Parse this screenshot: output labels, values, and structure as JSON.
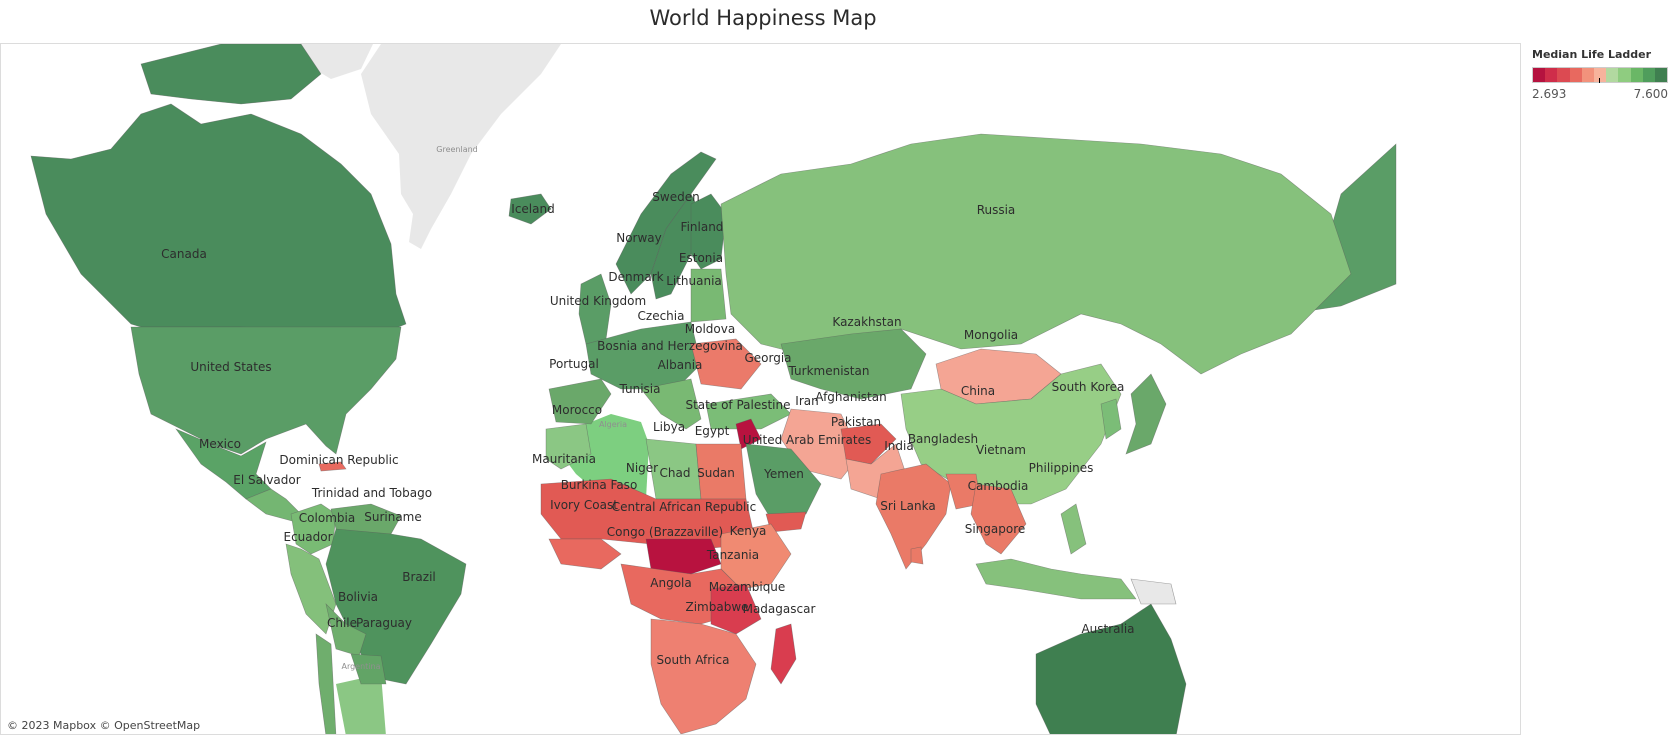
{
  "title": "World Happiness Map",
  "attribution": "© 2023 Mapbox © OpenStreetMap",
  "legend": {
    "title": "Median Life Ladder",
    "min_label": "2.693",
    "max_label": "7.600",
    "colors": [
      "#b5123f",
      "#cf2d4a",
      "#dc4a52",
      "#e8695f",
      "#f2927c",
      "#f7b39c",
      "#b2d9a0",
      "#8fcc80",
      "#6ab766",
      "#4f9d5c",
      "#3f7f50"
    ]
  },
  "basemap_labels": {
    "greenland": "Greenland",
    "algeria": "Algeria",
    "argentina": "Argentina"
  },
  "country_labels": [
    {
      "name": "Canada"
    },
    {
      "name": "United States"
    },
    {
      "name": "Mexico"
    },
    {
      "name": "Dominican Republic"
    },
    {
      "name": "El Salvador"
    },
    {
      "name": "Trinidad and Tobago"
    },
    {
      "name": "Colombia"
    },
    {
      "name": "Suriname"
    },
    {
      "name": "Ecuador"
    },
    {
      "name": "Brazil"
    },
    {
      "name": "Bolivia"
    },
    {
      "name": "Chile"
    },
    {
      "name": "Paraguay"
    },
    {
      "name": "Iceland"
    },
    {
      "name": "Sweden"
    },
    {
      "name": "Norway"
    },
    {
      "name": "Finland"
    },
    {
      "name": "Estonia"
    },
    {
      "name": "Denmark"
    },
    {
      "name": "Lithuania"
    },
    {
      "name": "United Kingdom"
    },
    {
      "name": "Czechia"
    },
    {
      "name": "Moldova"
    },
    {
      "name": "Bosnia and Herzegovina"
    },
    {
      "name": "Portugal"
    },
    {
      "name": "Albania"
    },
    {
      "name": "Georgia"
    },
    {
      "name": "Tunisia"
    },
    {
      "name": "Morocco"
    },
    {
      "name": "Libya"
    },
    {
      "name": "Egypt"
    },
    {
      "name": "State of Palestine"
    },
    {
      "name": "United Arab Emirates"
    },
    {
      "name": "Mauritania"
    },
    {
      "name": "Niger"
    },
    {
      "name": "Chad"
    },
    {
      "name": "Sudan"
    },
    {
      "name": "Burkina Faso"
    },
    {
      "name": "Ivory Coast"
    },
    {
      "name": "Central African Republic"
    },
    {
      "name": "Yemen"
    },
    {
      "name": "Kenya"
    },
    {
      "name": "Congo (Brazzaville)"
    },
    {
      "name": "Tanzania"
    },
    {
      "name": "Angola"
    },
    {
      "name": "Mozambique"
    },
    {
      "name": "Zimbabwe"
    },
    {
      "name": "Madagascar"
    },
    {
      "name": "South Africa"
    },
    {
      "name": "Russia"
    },
    {
      "name": "Kazakhstan"
    },
    {
      "name": "Mongolia"
    },
    {
      "name": "Turkmenistan"
    },
    {
      "name": "Iran"
    },
    {
      "name": "Afghanistan"
    },
    {
      "name": "Pakistan"
    },
    {
      "name": "India"
    },
    {
      "name": "Bangladesh"
    },
    {
      "name": "China"
    },
    {
      "name": "South Korea"
    },
    {
      "name": "Vietnam"
    },
    {
      "name": "Philippines"
    },
    {
      "name": "Cambodia"
    },
    {
      "name": "Sri Lanka"
    },
    {
      "name": "Singapore"
    },
    {
      "name": "Australia"
    }
  ]
}
